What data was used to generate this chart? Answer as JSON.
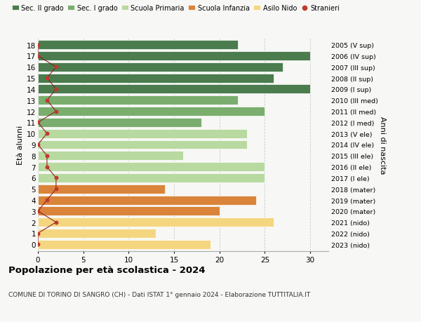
{
  "ages": [
    18,
    17,
    16,
    15,
    14,
    13,
    12,
    11,
    10,
    9,
    8,
    7,
    6,
    5,
    4,
    3,
    2,
    1,
    0
  ],
  "bar_values": [
    22,
    30,
    27,
    26,
    30,
    22,
    25,
    18,
    23,
    23,
    16,
    25,
    25,
    14,
    24,
    20,
    26,
    13,
    19
  ],
  "right_labels": [
    "2005 (V sup)",
    "2006 (IV sup)",
    "2007 (III sup)",
    "2008 (II sup)",
    "2009 (I sup)",
    "2010 (III med)",
    "2011 (II med)",
    "2012 (I med)",
    "2013 (V ele)",
    "2014 (IV ele)",
    "2015 (III ele)",
    "2016 (II ele)",
    "2017 (I ele)",
    "2018 (mater)",
    "2019 (mater)",
    "2020 (mater)",
    "2021 (nido)",
    "2022 (nido)",
    "2023 (nido)"
  ],
  "bar_colors": [
    "#4a7c4e",
    "#4a7c4e",
    "#4a7c4e",
    "#4a7c4e",
    "#4a7c4e",
    "#7aad6e",
    "#7aad6e",
    "#7aad6e",
    "#b8d9a0",
    "#b8d9a0",
    "#b8d9a0",
    "#b8d9a0",
    "#b8d9a0",
    "#d9843a",
    "#d9843a",
    "#d9843a",
    "#f5d680",
    "#f5d680",
    "#f5d680"
  ],
  "stranieri_values": [
    0,
    0,
    2,
    1,
    2,
    1,
    2,
    0,
    1,
    0,
    1,
    1,
    2,
    2,
    1,
    0,
    2,
    0,
    0
  ],
  "title": "Popolazione per età scolastica - 2024",
  "subtitle": "COMUNE DI TORINO DI SANGRO (CH) - Dati ISTAT 1° gennaio 2024 - Elaborazione TUTTITALIA.IT",
  "ylabel_left": "Età alunni",
  "ylabel_right": "Anni di nascita",
  "xlim": [
    0,
    32
  ],
  "xticks": [
    0,
    5,
    10,
    15,
    20,
    25,
    30
  ],
  "legend_labels": [
    "Sec. II grado",
    "Sec. I grado",
    "Scuola Primaria",
    "Scuola Infanzia",
    "Asilo Nido",
    "Stranieri"
  ],
  "legend_colors": [
    "#4a7c4e",
    "#7aad6e",
    "#b8d9a0",
    "#d9843a",
    "#f5d680",
    "#c0392b"
  ],
  "bg_color": "#f7f7f5",
  "grid_color": "#cccccc",
  "stranieri_line_color": "#8b1a1a",
  "stranieri_dot_color": "#c0392b"
}
